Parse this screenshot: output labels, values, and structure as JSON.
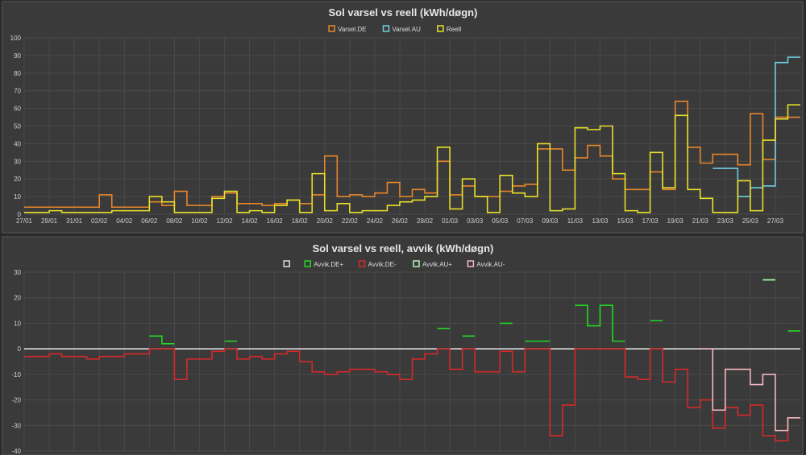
{
  "chart_data": [
    {
      "type": "line",
      "step": true,
      "title": "Sol varsel vs reell (kWh/døgn)",
      "ylim": [
        0,
        100
      ],
      "yticks": [
        0,
        10,
        20,
        30,
        40,
        50,
        60,
        70,
        80,
        90,
        100
      ],
      "xticks": [
        "27/01",
        "29/01",
        "31/01",
        "02/02",
        "04/02",
        "06/02",
        "08/02",
        "10/02",
        "12/02",
        "14/02",
        "16/02",
        "18/02",
        "20/02",
        "22/02",
        "24/02",
        "26/02",
        "28/02",
        "01/03",
        "03/03",
        "05/03",
        "07/03",
        "09/03",
        "11/03",
        "13/03",
        "15/03",
        "17/03",
        "19/03",
        "21/03",
        "23/03",
        "25/03",
        "27/03"
      ],
      "grid": true,
      "legend_position": "top-center",
      "series": [
        {
          "name": "Varsel.DE",
          "color": "#e8862a",
          "values": [
            4,
            4,
            4,
            4,
            4,
            4,
            11,
            4,
            4,
            4,
            7,
            5,
            13,
            5,
            5,
            10,
            12,
            6,
            6,
            5,
            6,
            8,
            6,
            11,
            33,
            10,
            11,
            10,
            12,
            18,
            10,
            14,
            12,
            30,
            11,
            16,
            10,
            10,
            13,
            16,
            17,
            37,
            37,
            25,
            32,
            39,
            33,
            20,
            14,
            14,
            24,
            14,
            64,
            38,
            29,
            34,
            34,
            28,
            57,
            31,
            55,
            55
          ]
        },
        {
          "name": "Varsel.AU",
          "color": "#6ecde0",
          "values": [
            null,
            null,
            null,
            null,
            null,
            null,
            null,
            null,
            null,
            null,
            null,
            null,
            null,
            null,
            null,
            null,
            null,
            null,
            null,
            null,
            null,
            null,
            null,
            null,
            null,
            null,
            null,
            null,
            null,
            null,
            null,
            null,
            null,
            null,
            null,
            null,
            null,
            null,
            null,
            null,
            null,
            null,
            null,
            null,
            null,
            null,
            null,
            null,
            null,
            null,
            null,
            null,
            null,
            null,
            null,
            26,
            26,
            10,
            15,
            16,
            86,
            89
          ]
        },
        {
          "name": "Reell",
          "color": "#e8e02a",
          "values": [
            1,
            1,
            2,
            1,
            1,
            1,
            1,
            2,
            2,
            2,
            10,
            7,
            1,
            1,
            1,
            9,
            13,
            1,
            2,
            1,
            5,
            8,
            1,
            23,
            2,
            6,
            1,
            2,
            2,
            5,
            7,
            8,
            10,
            38,
            3,
            20,
            10,
            1,
            22,
            12,
            10,
            40,
            2,
            3,
            49,
            48,
            50,
            23,
            2,
            1,
            35,
            15,
            56,
            14,
            9,
            1,
            1,
            19,
            2,
            42,
            54,
            62
          ]
        }
      ]
    },
    {
      "type": "line",
      "step": true,
      "title": "Sol varsel vs reell, avvik (kWh/døgn)",
      "ylim": [
        -40,
        30
      ],
      "yticks": [
        -40,
        -30,
        -20,
        -10,
        0,
        10,
        20,
        30
      ],
      "grid": true,
      "legend_position": "top-center",
      "series": [
        {
          "name": "",
          "color": "#dddddd",
          "values": [
            0,
            0,
            0,
            0,
            0,
            0,
            0,
            0,
            0,
            0,
            0,
            0,
            0,
            0,
            0,
            0,
            0,
            0,
            0,
            0,
            0,
            0,
            0,
            0,
            0,
            0,
            0,
            0,
            0,
            0,
            0,
            0,
            0,
            0,
            0,
            0,
            0,
            0,
            0,
            0,
            0,
            0,
            0,
            0,
            0,
            0,
            0,
            0,
            0,
            0,
            0,
            0,
            0,
            0,
            0,
            0,
            0,
            0,
            0,
            0,
            0,
            0
          ]
        },
        {
          "name": "Avvik.DE+",
          "color": "#22d922",
          "values": [
            null,
            null,
            null,
            null,
            null,
            null,
            null,
            null,
            null,
            null,
            5,
            2,
            null,
            null,
            null,
            null,
            3,
            null,
            null,
            null,
            null,
            null,
            null,
            null,
            null,
            null,
            null,
            null,
            null,
            null,
            null,
            null,
            null,
            8,
            null,
            5,
            null,
            null,
            10,
            null,
            3,
            3,
            null,
            null,
            17,
            9,
            17,
            3,
            null,
            null,
            11,
            null,
            null,
            null,
            null,
            null,
            null,
            null,
            null,
            27,
            null,
            7
          ]
        },
        {
          "name": "Avvik.DE-",
          "color": "#d42a2a",
          "values": [
            -3,
            -3,
            -2,
            -3,
            -3,
            -4,
            -3,
            -3,
            -2,
            -2,
            0,
            0,
            -12,
            -4,
            -4,
            -1,
            0,
            -4,
            -3,
            -4,
            -2,
            -1,
            -5,
            -9,
            -10,
            -9,
            -8,
            -8,
            -9,
            -10,
            -12,
            -4,
            -2,
            0,
            -8,
            0,
            -9,
            -9,
            -1,
            -9,
            0,
            0,
            -34,
            -22,
            0,
            0,
            0,
            0,
            -11,
            -12,
            0,
            -13,
            -8,
            -23,
            -20,
            -31,
            -23,
            -26,
            -22,
            -34,
            -36,
            -27
          ]
        },
        {
          "name": "Avvik.AU+",
          "color": "#b9f0b9",
          "values": [
            null,
            null,
            null,
            null,
            null,
            null,
            null,
            null,
            null,
            null,
            null,
            null,
            null,
            null,
            null,
            null,
            null,
            null,
            null,
            null,
            null,
            null,
            null,
            null,
            null,
            null,
            null,
            null,
            null,
            null,
            null,
            null,
            null,
            null,
            null,
            null,
            null,
            null,
            null,
            null,
            null,
            null,
            null,
            null,
            null,
            null,
            null,
            null,
            null,
            null,
            null,
            null,
            null,
            null,
            null,
            null,
            null,
            null,
            null,
            27,
            null,
            null
          ]
        },
        {
          "name": "Avvik.AU-",
          "color": "#f2b8c0",
          "values": [
            null,
            null,
            null,
            null,
            null,
            null,
            null,
            null,
            null,
            null,
            null,
            null,
            null,
            null,
            null,
            null,
            null,
            null,
            null,
            null,
            null,
            null,
            null,
            null,
            null,
            null,
            null,
            null,
            null,
            null,
            null,
            null,
            null,
            null,
            null,
            null,
            null,
            null,
            null,
            null,
            null,
            null,
            null,
            null,
            null,
            null,
            null,
            null,
            null,
            null,
            null,
            null,
            null,
            null,
            0,
            -24,
            -8,
            -8,
            -14,
            -10,
            -32,
            -27
          ]
        }
      ]
    }
  ]
}
